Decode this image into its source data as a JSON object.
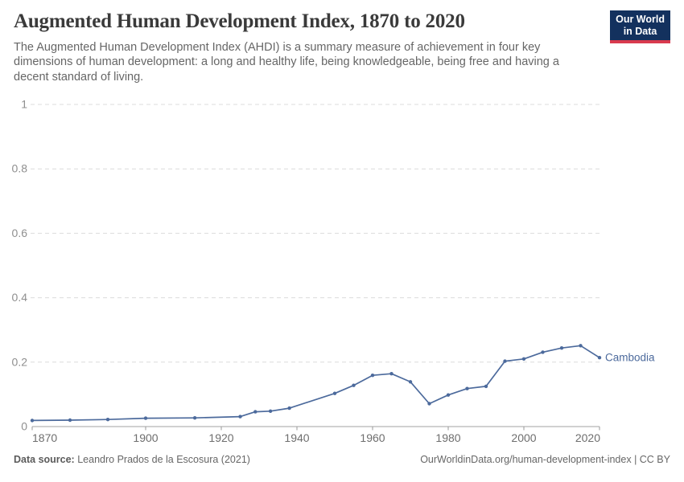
{
  "header": {
    "title": "Augmented Human Development Index, 1870 to 2020",
    "subtitle": "The Augmented Human Development Index (AHDI) is a summary measure of achievement in four key\ndimensions of human development: a long and healthy life, being knowledgeable, being free and having a\ndecent standard of living."
  },
  "logo": {
    "line1": "Our World",
    "line2": "in Data",
    "bg_color": "#13315E",
    "accent_color": "#D93A4E"
  },
  "chart_data": {
    "type": "line",
    "title": "Augmented Human Development Index, 1870 to 2020",
    "xlabel": "",
    "ylabel": "",
    "xlim": [
      1870,
      2020
    ],
    "ylim": [
      0,
      1
    ],
    "xticks": [
      1870,
      1900,
      1920,
      1940,
      1960,
      1980,
      2000,
      2020
    ],
    "yticks": [
      0,
      0.2,
      0.4,
      0.6,
      0.8,
      1
    ],
    "grid": "horizontal-dashed",
    "legend_position": "end-of-line-label",
    "series": [
      {
        "name": "Cambodia",
        "color": "#4C6A9C",
        "points": [
          [
            1870,
            0.019
          ],
          [
            1880,
            0.02
          ],
          [
            1890,
            0.022
          ],
          [
            1900,
            0.026
          ],
          [
            1913,
            0.027
          ],
          [
            1925,
            0.031
          ],
          [
            1929,
            0.046
          ],
          [
            1933,
            0.048
          ],
          [
            1938,
            0.057
          ],
          [
            1950,
            0.103
          ],
          [
            1955,
            0.128
          ],
          [
            1960,
            0.159
          ],
          [
            1965,
            0.164
          ],
          [
            1970,
            0.139
          ],
          [
            1975,
            0.071
          ],
          [
            1980,
            0.098
          ],
          [
            1985,
            0.118
          ],
          [
            1990,
            0.125
          ],
          [
            1995,
            0.203
          ],
          [
            2000,
            0.21
          ],
          [
            2005,
            0.231
          ],
          [
            2010,
            0.244
          ],
          [
            2015,
            0.251
          ],
          [
            2020,
            0.214
          ]
        ]
      }
    ],
    "axis_colors": {
      "grid": "#DCDCDC",
      "axis_line": "#A3A3A3",
      "tick": "#999999",
      "y_label": "#8F8F8F",
      "x_label": "#6E6E6E"
    }
  },
  "footer": {
    "source_label": "Data source:",
    "source_value": "Leandro Prados de la Escosura (2021)",
    "attribution": "OurWorldinData.org/human-development-index | CC BY"
  }
}
